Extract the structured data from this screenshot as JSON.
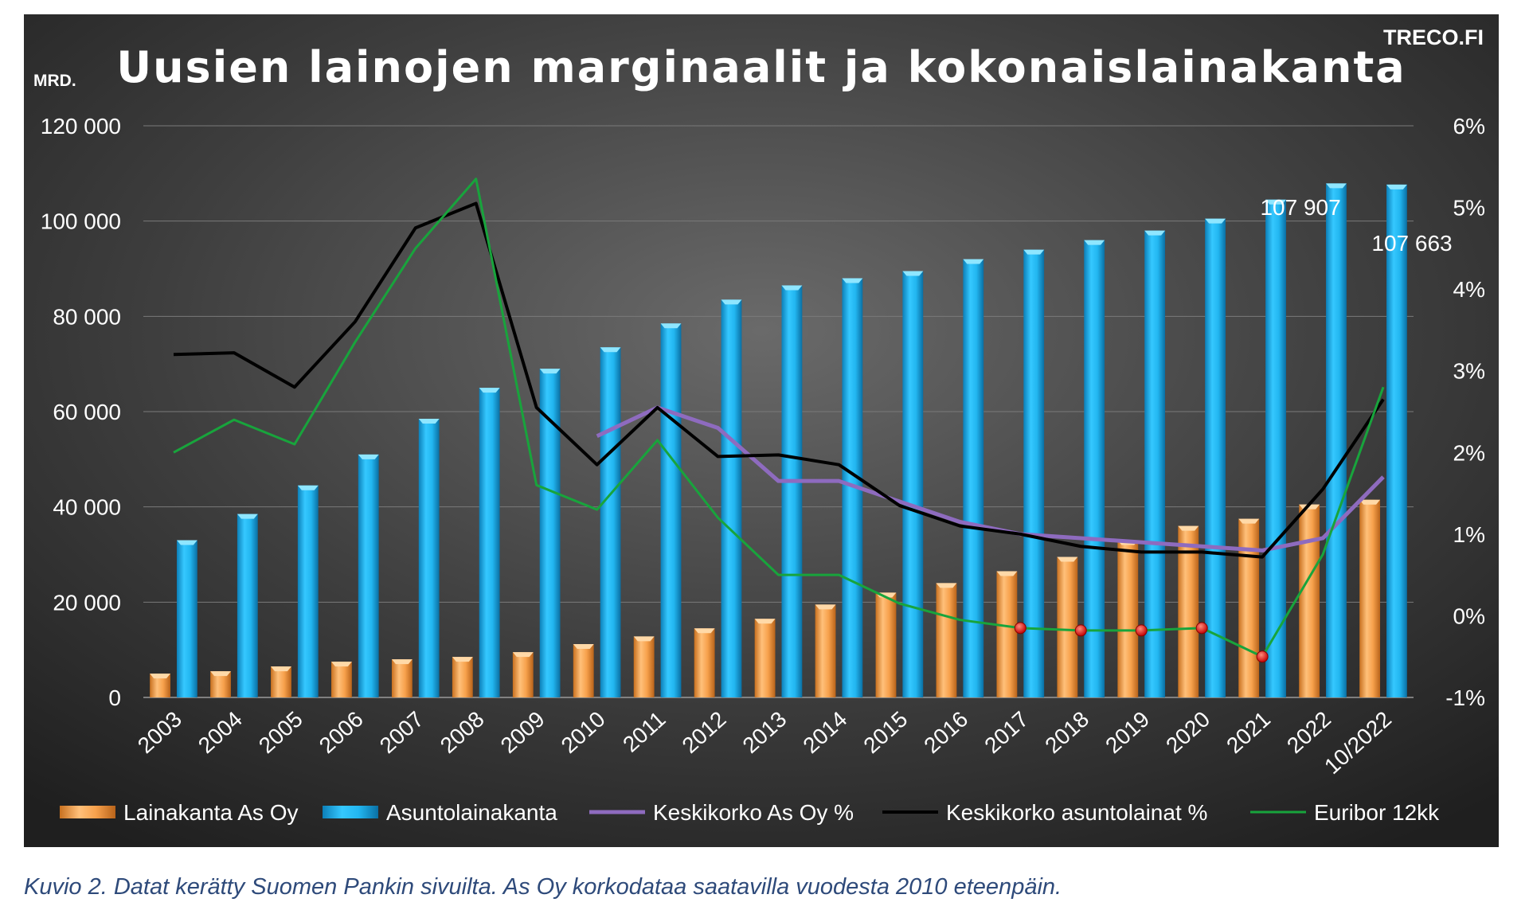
{
  "chart_data": {
    "type": "bar",
    "title": "Uusien lainojen marginaalit ja kokonaislainakanta",
    "brand": "TRECO.FI",
    "ylabel": "MRD.",
    "ylim": [
      0,
      120000
    ],
    "y2lim": [
      -1,
      6
    ],
    "y_ticks": [
      "0",
      "20 000",
      "40 000",
      "60 000",
      "80 000",
      "100 000",
      "120 000"
    ],
    "y2_ticks": [
      "-1%",
      "0%",
      "1%",
      "2%",
      "3%",
      "4%",
      "5%",
      "6%"
    ],
    "grid": true,
    "legend_position": "bottom",
    "categories": [
      "2003",
      "2004",
      "2005",
      "2006",
      "2007",
      "2008",
      "2009",
      "2010",
      "2011",
      "2012",
      "2013",
      "2014",
      "2015",
      "2016",
      "2017",
      "2018",
      "2019",
      "2020",
      "2021",
      "2022",
      "10/2022"
    ],
    "bar_series": [
      {
        "name": "Lainakanta As Oy",
        "color": "#f5a04a",
        "values": [
          5000,
          5500,
          6500,
          7500,
          8000,
          8500,
          9500,
          11200,
          12800,
          14500,
          16500,
          19500,
          22000,
          24000,
          26500,
          29500,
          33000,
          36000,
          37500,
          40500,
          41500
        ]
      },
      {
        "name": "Asuntolainakanta",
        "color": "#1fb4ec",
        "values": [
          33000,
          38500,
          44500,
          51000,
          58500,
          65000,
          69000,
          73500,
          78500,
          83500,
          86500,
          88000,
          89500,
          92000,
          94000,
          96000,
          98000,
          100500,
          104500,
          107907,
          107663
        ]
      }
    ],
    "line_series": [
      {
        "name": "Keskikorko As Oy %",
        "color": "#8e6bbf",
        "start_index": 7,
        "values": [
          2.2,
          2.55,
          2.3,
          1.65,
          1.65,
          1.4,
          1.15,
          1.0,
          0.95,
          0.9,
          0.85,
          0.8,
          0.95,
          1.7
        ]
      },
      {
        "name": "Keskikorko asuntolainat %",
        "color": "#000000",
        "start_index": 0,
        "values": [
          3.2,
          3.22,
          2.8,
          3.6,
          4.75,
          5.05,
          2.55,
          1.85,
          2.55,
          1.95,
          1.97,
          1.85,
          1.35,
          1.1,
          1.0,
          0.85,
          0.78,
          0.78,
          0.72,
          1.55,
          2.65
        ]
      },
      {
        "name": "Euribor 12kk",
        "color": "#18a43c",
        "start_index": 0,
        "values": [
          2.0,
          2.4,
          2.1,
          3.35,
          4.5,
          5.35,
          1.6,
          1.3,
          2.15,
          1.2,
          0.5,
          0.5,
          0.15,
          -0.05,
          -0.15,
          -0.18,
          -0.18,
          -0.15,
          -0.5,
          0.75,
          2.8
        ]
      }
    ],
    "negative_euribor_markers": [
      14,
      15,
      16,
      17,
      18
    ],
    "data_labels": [
      {
        "category": "2022",
        "text": "107 907"
      },
      {
        "category": "10/2022",
        "text": "107 663"
      }
    ]
  },
  "caption": "Kuvio 2. Datat kerätty Suomen Pankin sivuilta. As Oy korkodataa saatavilla vuodesta 2010 eteenpäin."
}
